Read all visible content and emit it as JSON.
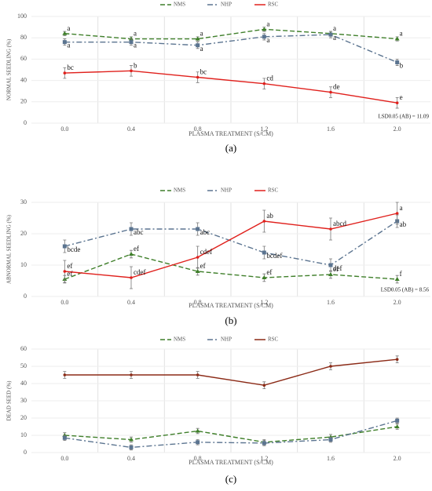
{
  "chart_data": [
    {
      "type": "line",
      "caption": "(a)",
      "y_label": "NORMAL SEEDLING (%)",
      "x_label": "PLASMA TREATMENT (S/CM)",
      "categories": [
        "0.0",
        "0.4",
        "0.8",
        "1.2",
        "1.6",
        "2.0"
      ],
      "ylim": [
        0,
        100
      ],
      "yticks": [
        0,
        20,
        40,
        60,
        80,
        100
      ],
      "grid": true,
      "legend": "top",
      "annotation": "LSD0.05 (AB) = 11.09",
      "series": [
        {
          "name": "NMS",
          "color": "#3f7f2a",
          "dash": "6,3",
          "marker": "triangle",
          "values": [
            84,
            79,
            79,
            88,
            84,
            79
          ],
          "errors": [
            2,
            2,
            2,
            2,
            2,
            2
          ],
          "letters": [
            "a",
            "a",
            "a",
            "a",
            "a",
            "a"
          ]
        },
        {
          "name": "NHP",
          "color": "#5b7490",
          "dash": "7,3,2,3",
          "marker": "square",
          "values": [
            76,
            76,
            73,
            81,
            83,
            57
          ],
          "errors": [
            3,
            3,
            3,
            3,
            3,
            3
          ],
          "letters": [
            "a",
            "a",
            "a",
            "a",
            "a",
            "b"
          ]
        },
        {
          "name": "RSC",
          "color": "#e0201c",
          "dash": "none",
          "marker": "circle",
          "values": [
            47,
            49,
            43,
            37,
            29,
            19
          ],
          "errors": [
            5,
            5,
            5,
            5,
            5,
            5
          ],
          "letters": [
            "bc",
            "b",
            "bc",
            "cd",
            "de",
            "e"
          ]
        }
      ]
    },
    {
      "type": "line",
      "caption": "(b)",
      "y_label": "ABNORMAL SEEDLING (%)",
      "x_label": "PLASMA TREATMENT (S/CM)",
      "categories": [
        "0.0",
        "0.4",
        "0.8",
        "1.2",
        "1.6",
        "2.0"
      ],
      "ylim": [
        0,
        30
      ],
      "yticks": [
        0,
        10,
        20,
        30
      ],
      "grid": true,
      "legend": "top",
      "annotation": "LSD0.05 (AB) = 8.56",
      "series": [
        {
          "name": "NMS",
          "color": "#3f7f2a",
          "dash": "6,3",
          "marker": "triangle",
          "values": [
            5.5,
            13.5,
            8,
            6,
            7,
            5.5
          ],
          "errors": [
            1.2,
            1.2,
            1.2,
            1.2,
            1.2,
            1.2
          ],
          "letters": [
            "ef",
            "ef",
            "ef",
            "ef",
            "ef",
            "f"
          ]
        },
        {
          "name": "NHP",
          "color": "#5b7490",
          "dash": "7,3,2,3",
          "marker": "square",
          "values": [
            16,
            21.5,
            21.5,
            14,
            10,
            24
          ],
          "errors": [
            2,
            2,
            2,
            2,
            2,
            2
          ],
          "letters": [
            "bcde",
            "abc",
            "abc",
            "bcdef",
            "def",
            "ab"
          ]
        },
        {
          "name": "RSC",
          "color": "#e0201c",
          "dash": "none",
          "marker": "circle",
          "values": [
            8,
            6,
            12.5,
            24,
            21.5,
            26.5
          ],
          "errors": [
            3.5,
            3.5,
            3.5,
            3.5,
            3.5,
            3.5
          ],
          "letters": [
            "ef",
            "cdef",
            "cdef",
            "ab",
            "abcd",
            "a"
          ]
        }
      ]
    },
    {
      "type": "line",
      "caption": "(c)",
      "y_label": "DEAD SEED (%)",
      "x_label": "PLASMA TREATMENT (S/CM)",
      "categories": [
        "0.0",
        "0.4",
        "0.8",
        "1.2",
        "1.6",
        "2.0"
      ],
      "ylim": [
        0,
        60
      ],
      "yticks": [
        0,
        10,
        20,
        30,
        40,
        50,
        60
      ],
      "grid": true,
      "legend": "top",
      "series": [
        {
          "name": "NMS",
          "color": "#3f7f2a",
          "dash": "6,3",
          "marker": "triangle",
          "values": [
            10,
            7.5,
            12.5,
            6,
            9,
            15
          ],
          "errors": [
            1.5,
            1.5,
            1.5,
            1.5,
            1.5,
            1.5
          ]
        },
        {
          "name": "NHP",
          "color": "#5b7490",
          "dash": "7,3,2,3",
          "marker": "square",
          "values": [
            8.5,
            3,
            6,
            5.5,
            7.5,
            18.5
          ],
          "errors": [
            1.5,
            1.5,
            1.5,
            1.5,
            1.5,
            1.5
          ]
        },
        {
          "name": "RSC",
          "color": "#8b2a16",
          "dash": "none",
          "marker": "circle",
          "values": [
            45,
            45,
            45,
            39,
            50,
            54
          ],
          "errors": [
            2,
            2,
            2,
            2,
            2,
            2
          ]
        }
      ]
    }
  ]
}
